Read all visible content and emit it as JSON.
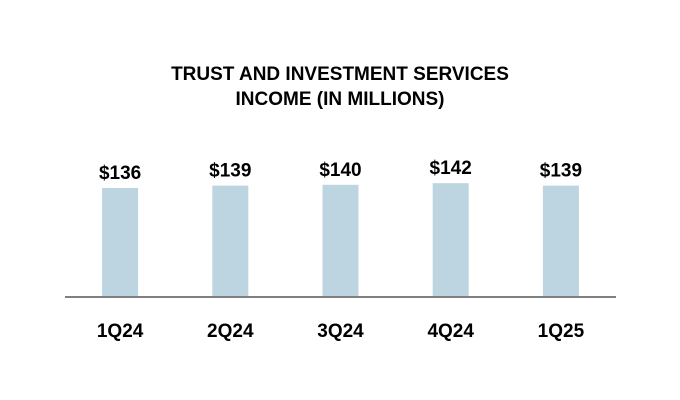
{
  "chart_data": {
    "type": "bar",
    "title_lines": [
      "TRUST AND INVESTMENT SERVICES",
      "INCOME (IN MILLIONS)"
    ],
    "categories": [
      "1Q24",
      "2Q24",
      "3Q24",
      "4Q24",
      "1Q25"
    ],
    "values": [
      136,
      139,
      140,
      142,
      139
    ],
    "value_labels": [
      "$136",
      "$139",
      "$140",
      "$142",
      "$139"
    ],
    "xlabel": "",
    "ylabel": "",
    "ylim": [
      0,
      150
    ],
    "grid": false,
    "legend": "none",
    "colors": {
      "bar": "#bcd5e1",
      "baseline": "#7f7f7f",
      "text": "#000000"
    }
  }
}
